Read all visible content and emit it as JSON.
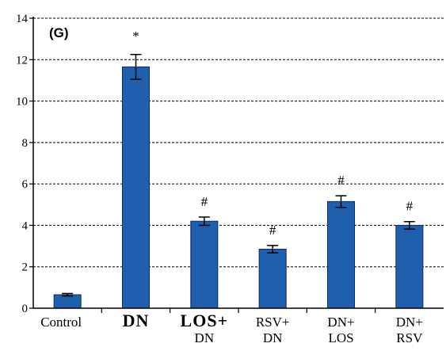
{
  "chart_data": {
    "type": "bar",
    "panel_label": "(G)",
    "categories": [
      [
        "Control"
      ],
      [
        "DN"
      ],
      [
        "LOS+",
        "DN"
      ],
      [
        "RSV+",
        "DN"
      ],
      [
        "DN+",
        "LOS"
      ],
      [
        "DN+",
        "RSV"
      ]
    ],
    "values": [
      0.65,
      11.65,
      4.2,
      2.85,
      5.15,
      4.0
    ],
    "errors": [
      0.06,
      0.6,
      0.2,
      0.18,
      0.28,
      0.18
    ],
    "markers": [
      "",
      "*",
      "#",
      "#",
      "#",
      "#"
    ],
    "ylim": [
      0,
      14
    ],
    "yticks": [
      0,
      2,
      4,
      6,
      8,
      10,
      12,
      14
    ],
    "grid": "dashed horizontal",
    "bar_color": "#1f5fae",
    "bar_edge_color": "#0b2a66"
  }
}
